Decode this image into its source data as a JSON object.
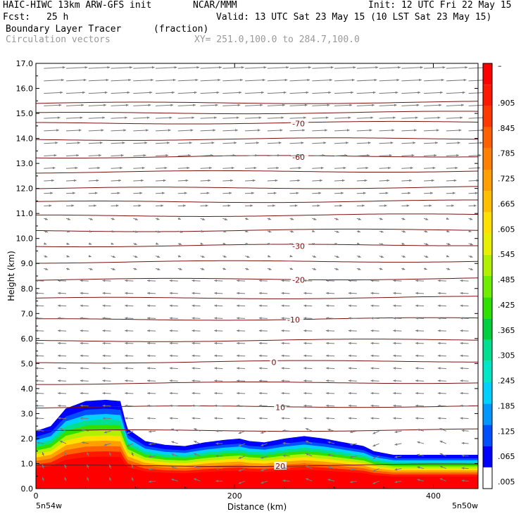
{
  "header": {
    "model": "HAIC-HIWC 13km ARW-GFS init",
    "org": "NCAR/MMM",
    "init": "Init: 12 UTC Fri 22 May 15",
    "fcst_label": "Fcst:",
    "fcst_value": "25 h",
    "valid": "Valid: 13 UTC Sat 23 May 15 (10 LST Sat 23 May 15)",
    "field": "Boundary Layer Tracer",
    "units": "(fraction)",
    "vectors": "Circulation vectors",
    "xy": "XY= 251.0,100.0 to 284.7,100.0"
  },
  "colors": {
    "temp_contour": "#7a1010",
    "vector": "#7a7a7a",
    "colorbar": [
      "#ffffff",
      "#0000ff",
      "#0050ff",
      "#0098ff",
      "#00d0ff",
      "#00e6c8",
      "#00e090",
      "#00d040",
      "#30e000",
      "#70ee00",
      "#b0f000",
      "#e8f000",
      "#ffe000",
      "#ffc000",
      "#ffa000",
      "#ff8000",
      "#ff6000",
      "#ff3800",
      "#ff1800",
      "#ff0000"
    ]
  },
  "chart_data": {
    "type": "heatmap",
    "title": "Boundary Layer Tracer",
    "xlabel": "Distance (km)",
    "ylabel": "Height (km)",
    "xlim": [
      0,
      445
    ],
    "ylim": [
      0,
      17
    ],
    "x_ticks": [
      "0",
      "200",
      "400"
    ],
    "x_tick_values": [
      0,
      200,
      400
    ],
    "x_end_labels": [
      "5n54w",
      "5n50w"
    ],
    "y_ticks": [
      "0.0",
      "1.0",
      "2.0",
      "3.0",
      "4.0",
      "5.0",
      "6.0",
      "7.0",
      "8.0",
      "9.0",
      "10.0",
      "11.0",
      "12.0",
      "13.0",
      "14.0",
      "15.0",
      "16.0",
      "17.0"
    ],
    "colorbar_labels": [
      ".005",
      ".065",
      ".125",
      ".185",
      ".245",
      ".305",
      ".365",
      ".425",
      ".485",
      ".545",
      ".605",
      ".665",
      ".725",
      ".785",
      ".845",
      ".905",
      "–"
    ],
    "temperature_contour_labels": [
      {
        "label": "-70",
        "x": 258,
        "y": 14.6
      },
      {
        "label": "-60",
        "x": 258,
        "y": 13.25
      },
      {
        "label": "-30",
        "x": 258,
        "y": 9.7
      },
      {
        "label": "-20",
        "x": 258,
        "y": 8.35
      },
      {
        "label": "-10",
        "x": 253,
        "y": 6.75
      },
      {
        "label": "0",
        "x": 237,
        "y": 5.05
      },
      {
        "label": "10",
        "x": 241,
        "y": 3.25
      },
      {
        "label": "20",
        "x": 241,
        "y": 0.9
      }
    ],
    "tracer_top_profile": {
      "x": [
        0,
        15,
        30,
        50,
        70,
        85,
        92,
        110,
        130,
        150,
        170,
        190,
        205,
        215,
        230,
        250,
        270,
        290,
        310,
        330,
        340,
        360,
        380,
        400,
        420,
        445
      ],
      "height_km": [
        2.3,
        2.5,
        3.2,
        3.5,
        3.55,
        3.5,
        2.4,
        1.9,
        1.75,
        1.7,
        1.85,
        1.95,
        2.0,
        1.9,
        1.85,
        2.0,
        2.1,
        2.0,
        1.85,
        1.7,
        1.5,
        1.35,
        1.35,
        1.35,
        1.35,
        1.35
      ]
    }
  }
}
